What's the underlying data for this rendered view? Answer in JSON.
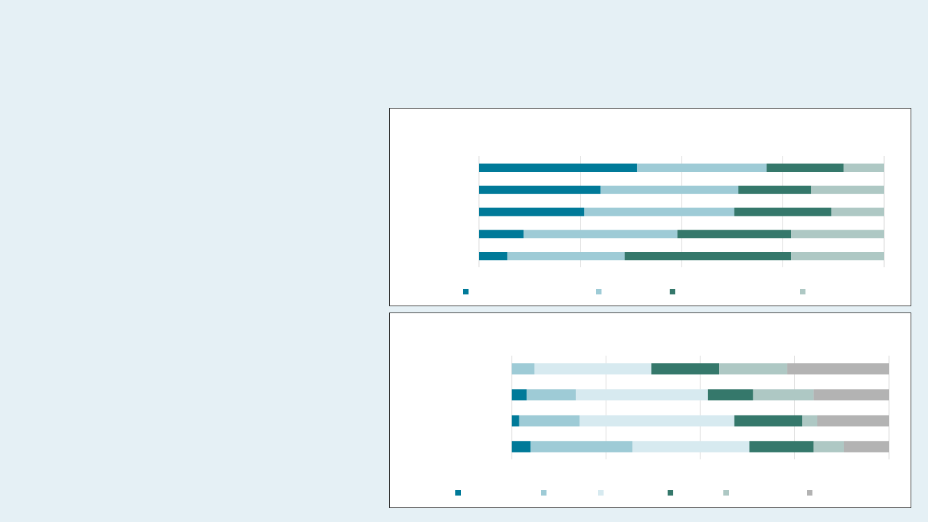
{
  "chart_data": [
    {
      "type": "bar",
      "orientation": "horizontal",
      "stacked": true,
      "categories": [
        null,
        null,
        null,
        null,
        null
      ],
      "xlim": [
        0,
        100
      ],
      "xticks": [
        0,
        25,
        50,
        75,
        100
      ],
      "grid": true,
      "legend": "bottom",
      "series": [
        {
          "color": "#007a99",
          "values": [
            39,
            30,
            26,
            11,
            7
          ]
        },
        {
          "color": "#9ecbd6",
          "values": [
            32,
            34,
            37,
            38,
            29
          ]
        },
        {
          "color": "#35786b",
          "values": [
            19,
            18,
            24,
            28,
            41
          ]
        },
        {
          "color": "#aec8c4",
          "values": [
            10,
            18,
            13,
            23,
            23
          ]
        }
      ]
    },
    {
      "type": "bar",
      "orientation": "horizontal",
      "stacked": true,
      "categories": [
        null,
        null,
        null,
        null
      ],
      "xlim": [
        0,
        100
      ],
      "xticks": [
        0,
        25,
        50,
        75,
        100
      ],
      "grid": true,
      "legend": "bottom",
      "series": [
        {
          "color": "#007a99",
          "values": [
            0,
            4,
            2,
            5
          ]
        },
        {
          "color": "#9ecbd6",
          "values": [
            6,
            13,
            16,
            27
          ]
        },
        {
          "color": "#d7eaf0",
          "values": [
            31,
            35,
            41,
            31
          ]
        },
        {
          "color": "#35786b",
          "values": [
            18,
            12,
            18,
            17
          ]
        },
        {
          "color": "#aec8c4",
          "values": [
            18,
            16,
            4,
            8
          ]
        },
        {
          "color": "#b3b3b3",
          "values": [
            27,
            20,
            19,
            12
          ]
        }
      ]
    }
  ]
}
